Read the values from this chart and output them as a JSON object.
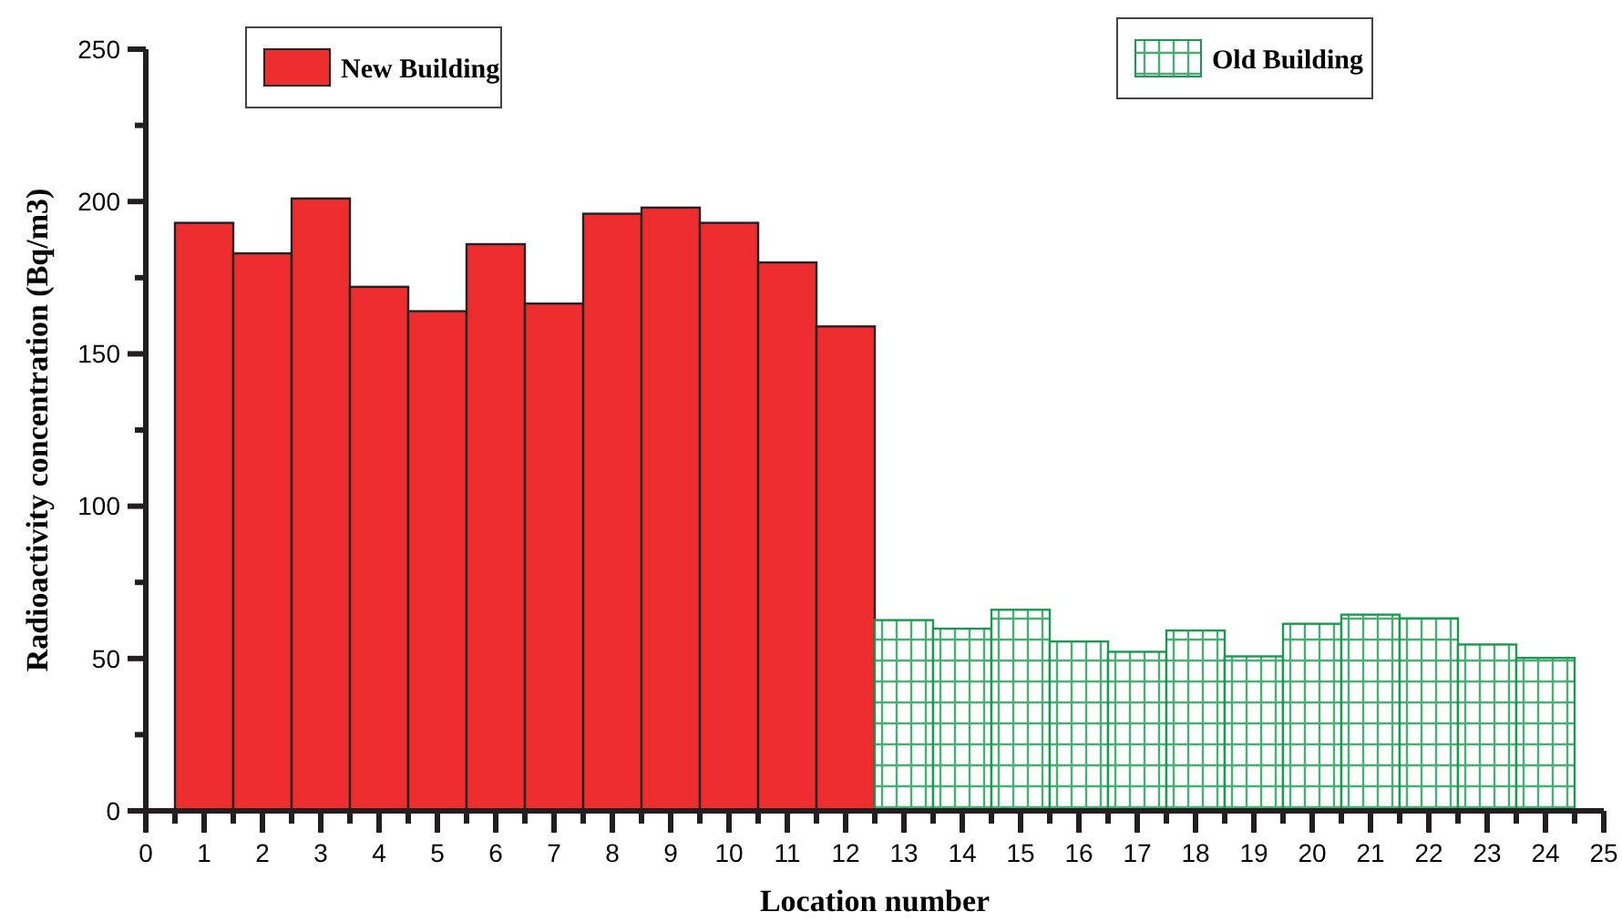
{
  "chart_data": {
    "type": "bar",
    "xlabel": "Location number",
    "ylabel": "Radioactivity concentration (Bq/m3)",
    "series": [
      {
        "name": "New Building",
        "color": "#ee2e2e",
        "x": [
          1,
          2,
          3,
          4,
          5,
          6,
          7,
          8,
          9,
          10,
          11,
          12
        ],
        "values": [
          193,
          183,
          201,
          172,
          164,
          186,
          166.5,
          196,
          198,
          193,
          180,
          159
        ]
      },
      {
        "name": "Old Building",
        "color": "#1a9a50",
        "x": [
          13,
          14,
          15,
          16,
          17,
          18,
          19,
          20,
          21,
          22,
          23,
          24
        ],
        "values": [
          62.6,
          59.8,
          66,
          55.6,
          52.2,
          59.2,
          50.7,
          61.4,
          64.4,
          63.2,
          54.6,
          50.2
        ]
      }
    ],
    "xlim": [
      0,
      25
    ],
    "xticks": [
      0,
      {
        "value": 0.5,
        "label": null
      },
      1,
      {
        "value": 1.5,
        "label": null
      },
      2,
      {
        "value": 2.5,
        "label": null
      },
      3,
      {
        "value": 3.5,
        "label": null
      },
      4,
      {
        "value": 4.5,
        "label": null
      },
      5,
      {
        "value": 5.5,
        "label": null
      },
      6,
      {
        "value": 6.5,
        "label": null
      },
      7,
      {
        "value": 7.5,
        "label": null
      },
      8,
      {
        "value": 8.5,
        "label": null
      },
      9,
      {
        "value": 9.5,
        "label": null
      },
      10,
      {
        "value": 10.5,
        "label": null
      },
      11,
      {
        "value": 11.5,
        "label": null
      },
      12,
      {
        "value": 12.5,
        "label": null
      },
      13,
      {
        "value": 13.5,
        "label": null
      },
      14,
      {
        "value": 14.5,
        "label": null
      },
      15,
      {
        "value": 15.5,
        "label": null
      },
      16,
      {
        "value": 16.5,
        "label": null
      },
      17,
      {
        "value": 17.5,
        "label": null
      },
      18,
      {
        "value": 18.5,
        "label": null
      },
      19,
      {
        "value": 19.5,
        "label": null
      },
      20,
      {
        "value": 20.5,
        "label": null
      },
      21,
      {
        "value": 21.5,
        "label": null
      },
      22,
      {
        "value": 22.5,
        "label": null
      },
      23,
      {
        "value": 23.5,
        "label": null
      },
      24,
      {
        "value": 24.5,
        "label": null
      },
      25
    ],
    "ylim": [
      0,
      250
    ],
    "yticks": [
      0,
      {
        "value": 25,
        "label": null
      },
      50,
      {
        "value": 75,
        "label": null
      },
      100,
      {
        "value": 125,
        "label": null
      },
      150,
      {
        "value": 175,
        "label": null
      },
      200,
      {
        "value": 225,
        "label": null
      },
      250
    ],
    "legend": "top",
    "grid": false
  }
}
